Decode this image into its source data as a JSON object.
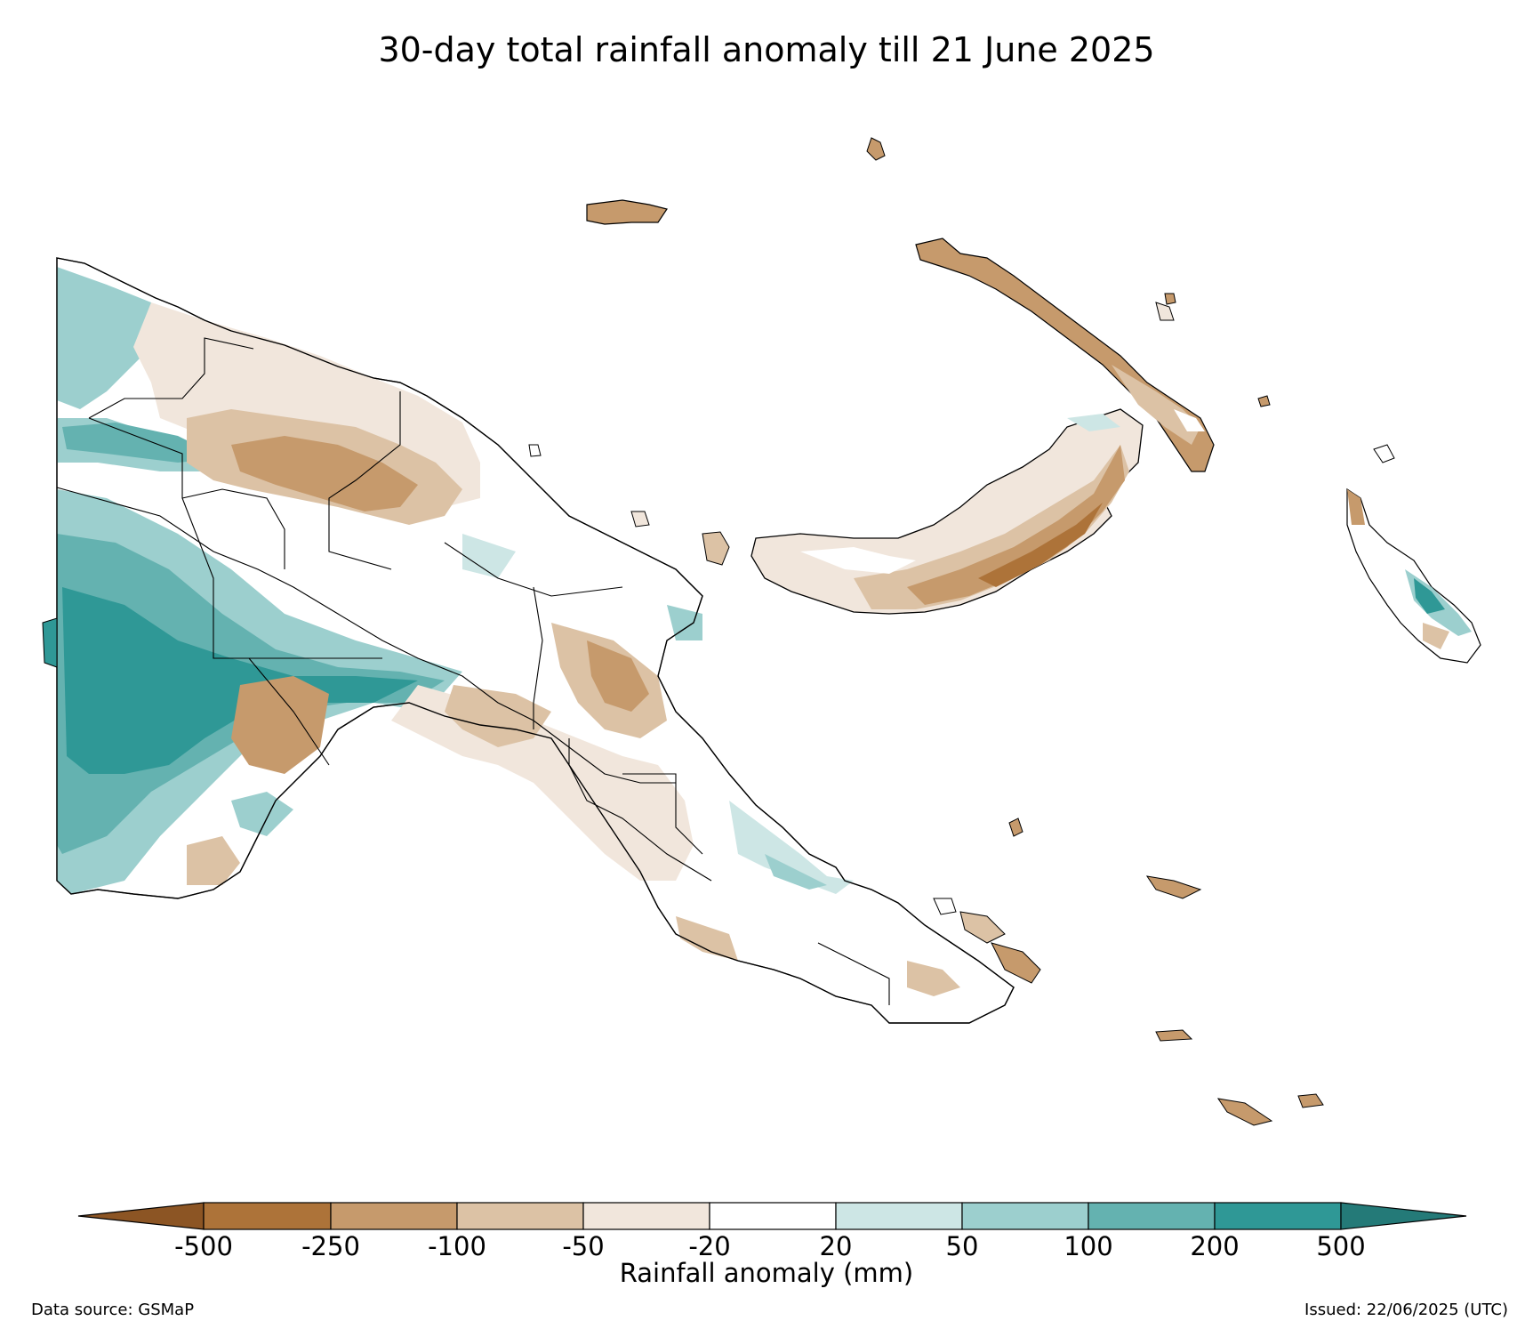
{
  "title": "30-day total rainfall anomaly till 21 June 2025",
  "colorbar": {
    "label": "Rainfall anomaly (mm)",
    "ticks": [
      "-500",
      "-250",
      "-100",
      "-50",
      "-20",
      "20",
      "50",
      "100",
      "200",
      "500"
    ],
    "colors": {
      "extend_low": "#8c5524",
      "lt_neg250": "#ad7339",
      "lt_neg100": "#c69a6c",
      "lt_neg50": "#dcc2a5",
      "lt_neg20": "#f1e6dc",
      "neutral": "#ffffff",
      "gt_20": "#cde6e5",
      "gt_50": "#9ccfce",
      "gt_100": "#64b2b0",
      "gt_200": "#2f9896",
      "extend_high": "#247a78"
    }
  },
  "footer": {
    "source": "Data source: GSMaP",
    "issued": "Issued: 22/06/2025 (UTC)"
  }
}
